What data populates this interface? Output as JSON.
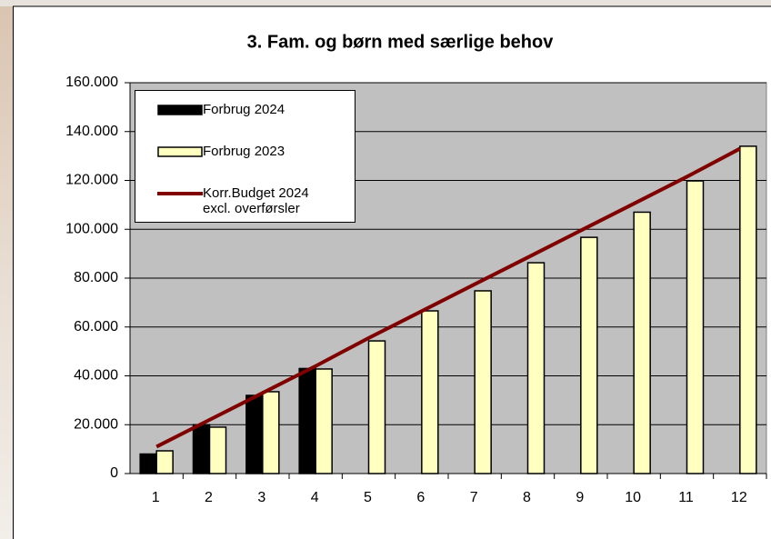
{
  "chart_data": {
    "type": "bar-line",
    "title": "3. Fam. og børn med særlige behov",
    "categories": [
      "1",
      "2",
      "3",
      "4",
      "5",
      "6",
      "7",
      "8",
      "9",
      "10",
      "11",
      "12"
    ],
    "series": [
      {
        "name": "Forbrug 2024",
        "type": "bar",
        "color": "#000000",
        "values": [
          8000,
          20000,
          32000,
          43000,
          null,
          null,
          null,
          null,
          null,
          null,
          null,
          null
        ]
      },
      {
        "name": "Forbrug 2023",
        "type": "bar",
        "color": "#ffffc0",
        "values": [
          9300,
          19000,
          33500,
          42800,
          54300,
          66600,
          74800,
          86300,
          96700,
          107000,
          119800,
          134000
        ]
      },
      {
        "name": "Korr.Budget 2024 excl. overførsler",
        "type": "line",
        "color": "#800000",
        "values": [
          11000,
          22000,
          33000,
          44000,
          55500,
          66500,
          77500,
          88500,
          99500,
          110500,
          121500,
          133000
        ]
      }
    ],
    "ylim": [
      0,
      160000
    ],
    "yticks": [
      0,
      {
        "value": 20000,
        "label": "20.000"
      },
      {
        "value": 40000,
        "label": "40.000"
      },
      {
        "value": 60000,
        "label": "60.000"
      },
      {
        "value": 80000,
        "label": "80.000"
      },
      {
        "value": 100000,
        "label": "100.000"
      },
      {
        "value": 120000,
        "label": "120.000"
      },
      {
        "value": 140000,
        "label": "140.000"
      },
      {
        "value": 160000,
        "label": "160.000"
      }
    ],
    "grid": true,
    "plot_background": "#c0c0c0",
    "legend": "upper left"
  }
}
